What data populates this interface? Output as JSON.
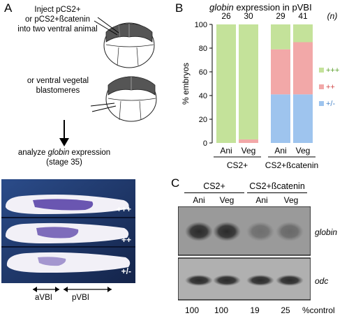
{
  "panelA": {
    "letter": "A",
    "inject_lines": [
      "Inject pCS2+",
      "or pCS2+ßcatenin",
      "into two ventral animal"
    ],
    "or_vegetal_lines": [
      "or  ventral vegetal",
      "blastomeres"
    ],
    "analyze_prefix": "analyze ",
    "analyze_gene": "globin",
    "analyze_suffix": " expression",
    "stage": "(stage 35)",
    "embryo_scores": [
      "+++",
      "++",
      "+/-"
    ],
    "region_labels": [
      "aVBI",
      "pVBI"
    ]
  },
  "panelB": {
    "letter": "B",
    "title_gene": "globin",
    "title_rest": " expression in pVBI",
    "n_label": "(n)",
    "ylabel": "% embryos",
    "group_labels": [
      "CS2+",
      "CS2+ßcatenin"
    ]
  },
  "chart_data": {
    "type": "bar",
    "stacked": true,
    "title": "globin expression in pVBI",
    "ylabel": "% embryos",
    "xlabel": "",
    "ylim": [
      0,
      100
    ],
    "yticks": [
      0,
      20,
      40,
      60,
      80,
      100
    ],
    "categories": [
      "Ani",
      "Veg",
      "Ani",
      "Veg"
    ],
    "groups": [
      {
        "label": "CS2+",
        "categories": [
          0,
          1
        ]
      },
      {
        "label": "CS2+ßcatenin",
        "categories": [
          2,
          3
        ]
      }
    ],
    "n": [
      26,
      30,
      29,
      41
    ],
    "series": [
      {
        "name": "+/-",
        "color": "#9ec4ee",
        "values": [
          0,
          0,
          41,
          41
        ]
      },
      {
        "name": "++",
        "color": "#f2a8a8",
        "values": [
          0,
          3,
          38,
          44
        ]
      },
      {
        "name": "+++",
        "color": "#c4e29a",
        "values": [
          100,
          97,
          21,
          15
        ]
      }
    ],
    "legend": "right"
  },
  "panelC": {
    "letter": "C",
    "groups": [
      "CS2+",
      "CS2+ßcatenin"
    ],
    "lanes": [
      "Ani",
      "Veg",
      "Ani",
      "Veg"
    ],
    "bands": [
      "globin",
      "odc"
    ],
    "percent_values": [
      "100",
      "100",
      "19",
      "25"
    ],
    "percent_label": "%control",
    "blot_intensity": {
      "globin": [
        1.0,
        1.0,
        0.19,
        0.25
      ],
      "odc": [
        1.0,
        1.0,
        1.0,
        1.0
      ]
    }
  }
}
